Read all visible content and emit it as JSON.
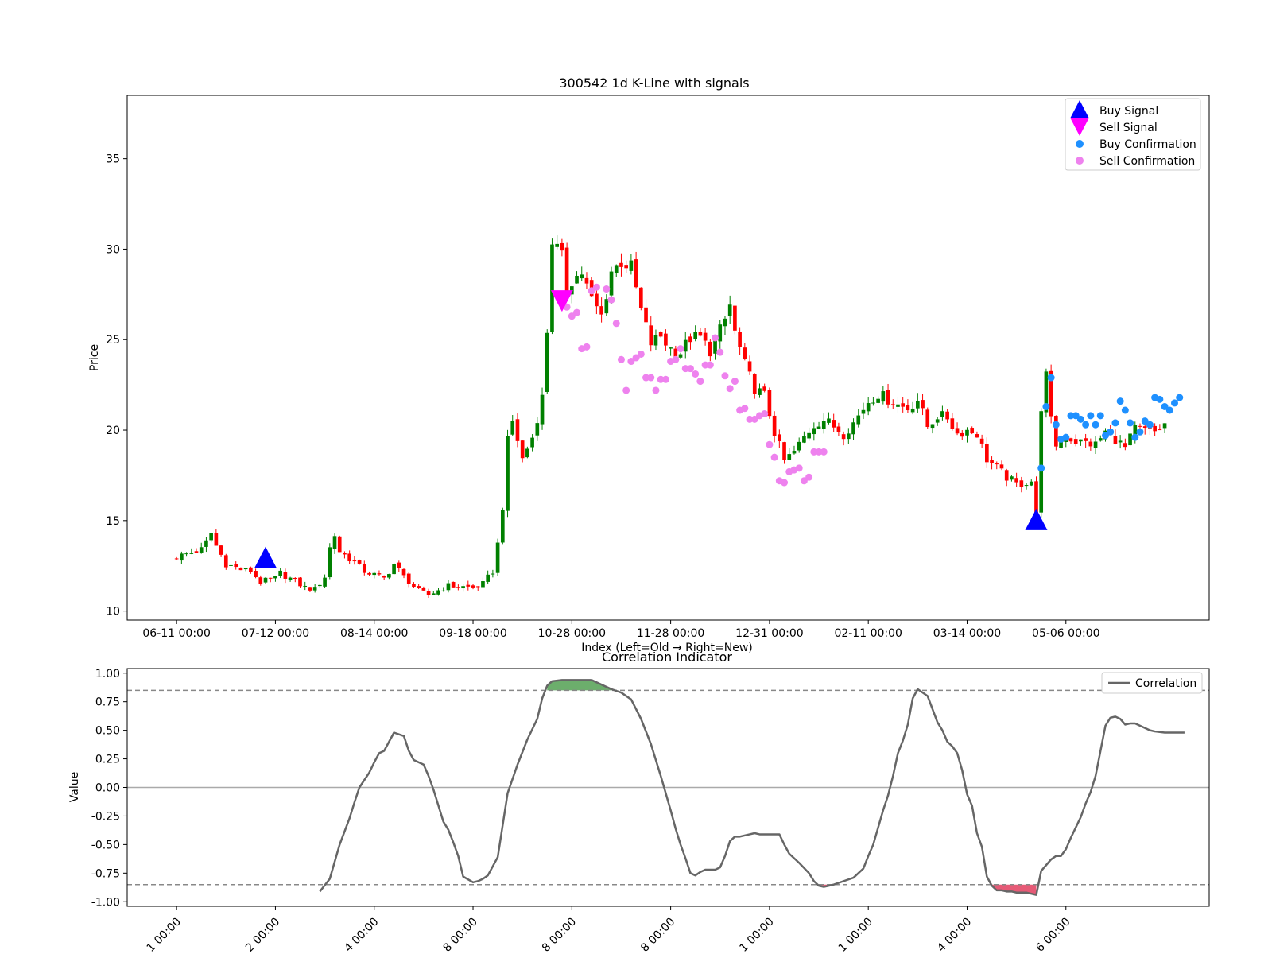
{
  "chart_data": [
    {
      "type": "candlestick",
      "title": "300542 1d K-Line with signals",
      "xlabel": "Index (Left=Old → Right=New)",
      "ylabel": "Price",
      "ylim": [
        9.5,
        38.5
      ],
      "yticks": [
        10,
        15,
        20,
        25,
        30,
        35
      ],
      "xlim": [
        -10,
        209
      ],
      "xticks": [
        {
          "x": 0,
          "label": "06-11 00:00"
        },
        {
          "x": 20,
          "label": "07-12 00:00"
        },
        {
          "x": 40,
          "label": "08-14 00:00"
        },
        {
          "x": 60,
          "label": "09-18 00:00"
        },
        {
          "x": 80,
          "label": "10-28 00:00"
        },
        {
          "x": 100,
          "label": "11-28 00:00"
        },
        {
          "x": 120,
          "label": "12-31 00:00"
        },
        {
          "x": 140,
          "label": "02-11 00:00"
        },
        {
          "x": 160,
          "label": "03-14 00:00"
        },
        {
          "x": 180,
          "label": "05-06 00:00"
        }
      ],
      "grid": false,
      "legend_position": "top-right",
      "colors": {
        "up": "#008000",
        "down": "#ff0000",
        "buy_signal": "#0000ff",
        "sell_signal": "#ff00ff",
        "buy_confirmation": "#1e90ff",
        "sell_confirmation": "#ee82ee"
      },
      "legend": [
        {
          "name": "Buy Signal",
          "marker": "triangle-up",
          "color": "#0000ff"
        },
        {
          "name": "Sell Signal",
          "marker": "triangle-down",
          "color": "#ff00ff"
        },
        {
          "name": "Buy Confirmation",
          "marker": "circle",
          "color": "#1e90ff"
        },
        {
          "name": "Sell Confirmation",
          "marker": "circle",
          "color": "#ee82ee"
        }
      ],
      "anchors": [
        [
          0,
          13.0
        ],
        [
          5,
          13.4
        ],
        [
          6,
          13.8
        ],
        [
          7,
          14.3
        ],
        [
          8,
          13.6
        ],
        [
          10,
          12.6
        ],
        [
          13,
          12.3
        ],
        [
          15,
          12.2
        ],
        [
          17,
          11.6
        ],
        [
          20,
          11.8
        ],
        [
          21,
          12.1
        ],
        [
          23,
          11.8
        ],
        [
          26,
          11.3
        ],
        [
          28,
          11.2
        ],
        [
          30,
          11.9
        ],
        [
          31,
          13.5
        ],
        [
          32,
          14.2
        ],
        [
          33,
          13.3
        ],
        [
          36,
          12.7
        ],
        [
          38,
          12.2
        ],
        [
          42,
          11.8
        ],
        [
          44,
          12.6
        ],
        [
          46,
          11.9
        ],
        [
          49,
          11.1
        ],
        [
          51,
          10.9
        ],
        [
          55,
          11.4
        ],
        [
          60,
          11.3
        ],
        [
          62,
          11.5
        ],
        [
          64,
          12.2
        ],
        [
          65,
          13.7
        ],
        [
          66,
          15.8
        ],
        [
          67,
          19.4
        ],
        [
          68,
          20.5
        ],
        [
          70,
          18.4
        ],
        [
          72,
          19.6
        ],
        [
          74,
          21.8
        ],
        [
          75,
          25.5
        ],
        [
          76,
          30.5
        ],
        [
          78,
          29.5
        ],
        [
          79,
          27.8
        ],
        [
          80,
          28.3
        ],
        [
          82,
          28.7
        ],
        [
          84,
          27.2
        ],
        [
          86,
          26.3
        ],
        [
          88,
          28.8
        ],
        [
          90,
          29.3
        ],
        [
          92,
          29.0
        ],
        [
          94,
          26.6
        ],
        [
          96,
          24.8
        ],
        [
          98,
          25.2
        ],
        [
          100,
          24.5
        ],
        [
          102,
          24.3
        ],
        [
          104,
          25.1
        ],
        [
          106,
          25.1
        ],
        [
          108,
          24.4
        ],
        [
          110,
          25.5
        ],
        [
          111,
          26.1
        ],
        [
          112,
          26.9
        ],
        [
          113,
          25.4
        ],
        [
          115,
          23.6
        ],
        [
          117,
          22.3
        ],
        [
          119,
          21.9
        ],
        [
          121,
          19.9
        ],
        [
          123,
          18.3
        ],
        [
          125,
          18.8
        ],
        [
          127,
          19.6
        ],
        [
          129,
          20.3
        ],
        [
          131,
          20.6
        ],
        [
          133,
          20.2
        ],
        [
          135,
          19.8
        ],
        [
          137,
          20.4
        ],
        [
          140,
          21.6
        ],
        [
          142,
          22.0
        ],
        [
          144,
          21.7
        ],
        [
          146,
          21.4
        ],
        [
          148,
          21.2
        ],
        [
          150,
          21.7
        ],
        [
          152,
          20.2
        ],
        [
          154,
          20.8
        ],
        [
          156,
          20.7
        ],
        [
          158,
          19.8
        ],
        [
          160,
          20.0
        ],
        [
          162,
          19.8
        ],
        [
          164,
          18.4
        ],
        [
          166,
          17.9
        ],
        [
          168,
          17.4
        ],
        [
          170,
          17.0
        ],
        [
          173,
          17.2
        ],
        [
          174,
          15.2
        ],
        [
          175,
          21.3
        ],
        [
          176,
          23.0
        ],
        [
          177,
          20.5
        ],
        [
          178,
          19.2
        ],
        [
          180,
          19.6
        ],
        [
          182,
          19.4
        ],
        [
          184,
          19.3
        ],
        [
          186,
          19.2
        ],
        [
          188,
          19.9
        ],
        [
          190,
          19.5
        ],
        [
          192,
          19.0
        ],
        [
          194,
          20.1
        ],
        [
          196,
          20.0
        ],
        [
          198,
          19.9
        ],
        [
          200,
          20.3
        ],
        [
          200,
          20.6
        ]
      ],
      "candles_count": 201,
      "buy_signals": [
        {
          "x": 18,
          "y": 12.9
        },
        {
          "x": 174,
          "y": 15.0
        }
      ],
      "sell_signals": [
        {
          "x": 78,
          "y": 27.2
        }
      ],
      "buy_confirmations": [
        [
          175,
          17.9
        ],
        [
          176,
          21.3
        ],
        [
          177,
          22.9
        ],
        [
          178,
          20.3
        ],
        [
          179,
          19.5
        ],
        [
          180,
          19.6
        ],
        [
          181,
          20.8
        ],
        [
          182,
          20.8
        ],
        [
          183,
          20.6
        ],
        [
          184,
          20.3
        ],
        [
          185,
          20.8
        ],
        [
          186,
          20.3
        ],
        [
          187,
          20.8
        ],
        [
          188,
          19.7
        ],
        [
          189,
          19.9
        ],
        [
          190,
          20.4
        ],
        [
          191,
          21.6
        ],
        [
          192,
          21.1
        ],
        [
          193,
          20.4
        ],
        [
          194,
          19.6
        ],
        [
          195,
          19.9
        ],
        [
          196,
          20.5
        ],
        [
          197,
          20.3
        ],
        [
          198,
          21.8
        ],
        [
          199,
          21.7
        ],
        [
          200,
          21.3
        ],
        [
          201,
          21.1
        ],
        [
          202,
          21.5
        ],
        [
          203,
          21.8
        ]
      ],
      "sell_confirmations": [
        [
          79,
          26.8
        ],
        [
          80,
          26.3
        ],
        [
          81,
          26.5
        ],
        [
          82,
          24.5
        ],
        [
          83,
          24.6
        ],
        [
          84,
          27.7
        ],
        [
          85,
          27.9
        ],
        [
          87,
          27.8
        ],
        [
          88,
          27.2
        ],
        [
          89,
          25.9
        ],
        [
          90,
          23.9
        ],
        [
          91,
          22.2
        ],
        [
          92,
          23.8
        ],
        [
          93,
          24.0
        ],
        [
          94,
          24.2
        ],
        [
          95,
          22.9
        ],
        [
          96,
          22.9
        ],
        [
          97,
          22.2
        ],
        [
          98,
          22.8
        ],
        [
          99,
          22.8
        ],
        [
          100,
          23.8
        ],
        [
          101,
          23.9
        ],
        [
          102,
          24.5
        ],
        [
          103,
          23.4
        ],
        [
          104,
          23.4
        ],
        [
          105,
          23.1
        ],
        [
          106,
          22.7
        ],
        [
          107,
          23.6
        ],
        [
          108,
          23.6
        ],
        [
          109,
          25.1
        ],
        [
          110,
          24.3
        ],
        [
          111,
          23.0
        ],
        [
          112,
          22.3
        ],
        [
          113,
          22.7
        ],
        [
          114,
          21.1
        ],
        [
          115,
          21.2
        ],
        [
          116,
          20.6
        ],
        [
          117,
          20.6
        ],
        [
          118,
          20.8
        ],
        [
          119,
          20.9
        ],
        [
          120,
          19.2
        ],
        [
          121,
          18.5
        ],
        [
          122,
          17.2
        ],
        [
          123,
          17.1
        ],
        [
          124,
          17.7
        ],
        [
          125,
          17.8
        ],
        [
          126,
          17.9
        ],
        [
          127,
          17.2
        ],
        [
          128,
          17.4
        ],
        [
          129,
          18.8
        ],
        [
          130,
          18.8
        ],
        [
          131,
          18.8
        ]
      ]
    },
    {
      "type": "line",
      "title": "Correlation Indicator",
      "ylabel": "Value",
      "ylim": [
        -1.04,
        1.04
      ],
      "yticks": [
        "1.00",
        "0.75",
        "0.50",
        "0.25",
        "0.00",
        "-0.25",
        "-0.50",
        "-0.75",
        "-1.00"
      ],
      "xlim": [
        -10,
        209
      ],
      "xticks_partial": [
        {
          "x": 0,
          "label": "1 00:00"
        },
        {
          "x": 20,
          "label": "2 00:00"
        },
        {
          "x": 40,
          "label": "4 00:00"
        },
        {
          "x": 60,
          "label": "8 00:00"
        },
        {
          "x": 80,
          "label": "8 00:00"
        },
        {
          "x": 100,
          "label": "8 00:00"
        },
        {
          "x": 120,
          "label": "1 00:00"
        },
        {
          "x": 140,
          "label": "1 00:00"
        },
        {
          "x": 160,
          "label": "4 00:00"
        },
        {
          "x": 180,
          "label": "6 00:00"
        }
      ],
      "thresholds": [
        0.85,
        -0.85
      ],
      "colors": {
        "line": "#666666",
        "positive_fill": "#2e8b2e",
        "negative_fill": "#dc143c",
        "threshold": "#888888"
      },
      "legend_position": "top-right",
      "series": [
        {
          "name": "Correlation",
          "x": [
            29,
            31,
            33,
            35,
            36,
            37,
            39,
            40,
            41,
            42,
            43,
            44,
            46,
            47,
            48,
            50,
            51,
            52,
            54,
            55,
            56,
            57,
            58,
            60,
            61,
            62,
            63,
            65,
            67,
            69,
            71,
            73,
            74,
            75,
            76,
            78,
            80,
            82,
            84,
            86,
            88,
            90,
            92,
            94,
            96,
            98,
            100,
            101,
            102,
            103,
            104,
            105,
            106,
            107,
            109,
            110,
            111,
            112,
            113,
            114,
            116,
            117,
            118,
            119,
            120,
            121,
            122,
            123,
            124,
            125,
            126,
            128,
            129,
            130,
            131,
            132,
            133,
            135,
            137,
            138,
            139,
            140,
            141,
            142,
            143,
            144,
            145,
            146,
            147,
            148,
            149,
            150,
            152,
            154,
            155,
            156,
            157,
            158,
            159,
            160,
            161,
            162,
            163,
            164,
            165,
            166,
            167,
            168,
            169,
            170,
            171,
            172,
            173,
            174,
            175,
            176,
            177,
            178,
            179,
            180,
            181,
            182,
            183,
            184,
            185,
            186,
            187,
            188,
            189,
            190,
            191,
            192,
            193,
            194,
            195,
            196,
            197,
            198,
            200,
            202,
            204
          ],
          "values": [
            -0.91,
            -0.8,
            -0.5,
            -0.27,
            -0.13,
            0.0,
            0.13,
            0.22,
            0.3,
            0.32,
            0.4,
            0.48,
            0.45,
            0.32,
            0.24,
            0.2,
            0.1,
            -0.02,
            -0.3,
            -0.37,
            -0.48,
            -0.6,
            -0.78,
            -0.83,
            -0.82,
            -0.8,
            -0.77,
            -0.61,
            -0.05,
            0.2,
            0.42,
            0.6,
            0.78,
            0.89,
            0.93,
            0.94,
            0.94,
            0.94,
            0.94,
            0.9,
            0.86,
            0.83,
            0.77,
            0.6,
            0.38,
            0.1,
            -0.2,
            -0.36,
            -0.5,
            -0.62,
            -0.75,
            -0.77,
            -0.74,
            -0.72,
            -0.72,
            -0.7,
            -0.6,
            -0.47,
            -0.43,
            -0.43,
            -0.41,
            -0.4,
            -0.41,
            -0.41,
            -0.41,
            -0.41,
            -0.41,
            -0.5,
            -0.58,
            -0.62,
            -0.66,
            -0.75,
            -0.82,
            -0.86,
            -0.87,
            -0.86,
            -0.85,
            -0.82,
            -0.79,
            -0.75,
            -0.71,
            -0.6,
            -0.5,
            -0.35,
            -0.2,
            -0.07,
            0.1,
            0.3,
            0.41,
            0.55,
            0.78,
            0.86,
            0.8,
            0.57,
            0.5,
            0.4,
            0.36,
            0.3,
            0.15,
            -0.06,
            -0.16,
            -0.4,
            -0.52,
            -0.78,
            -0.86,
            -0.9,
            -0.9,
            -0.91,
            -0.91,
            -0.92,
            -0.92,
            -0.92,
            -0.93,
            -0.94,
            -0.73,
            -0.68,
            -0.63,
            -0.6,
            -0.6,
            -0.54,
            -0.44,
            -0.35,
            -0.26,
            -0.14,
            -0.04,
            0.1,
            0.32,
            0.54,
            0.61,
            0.62,
            0.6,
            0.55,
            0.56,
            0.56,
            0.54,
            0.52,
            0.5,
            0.49,
            0.48,
            0.48,
            0.48
          ]
        }
      ]
    }
  ]
}
